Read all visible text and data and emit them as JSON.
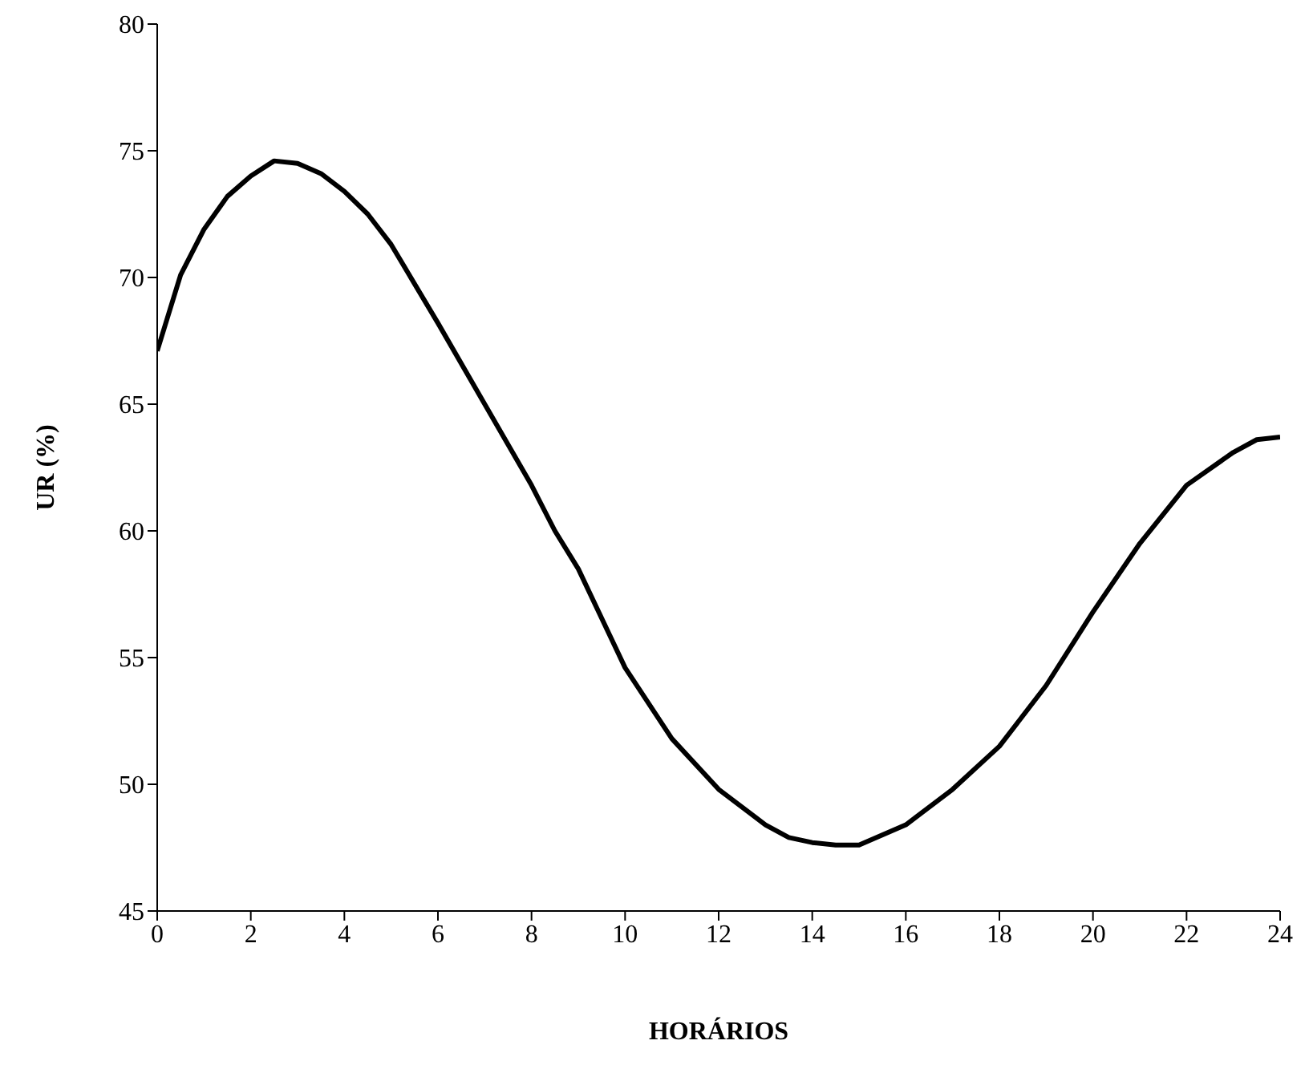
{
  "chart_data": {
    "type": "line",
    "xlabel": "HORÁRIOS",
    "ylabel": "UR (%)",
    "x": [
      0,
      0.5,
      1,
      1.5,
      2,
      2.5,
      3,
      3.5,
      4,
      4.5,
      5,
      6,
      7,
      8,
      8.5,
      9,
      10,
      11,
      12,
      13,
      13.5,
      14,
      14.5,
      15,
      16,
      17,
      18,
      19,
      20,
      21,
      22,
      23,
      23.5,
      24
    ],
    "series": [
      {
        "color": "#000000",
        "values": [
          67.1,
          70.1,
          71.9,
          73.2,
          74.0,
          74.6,
          74.5,
          74.1,
          73.4,
          72.5,
          71.3,
          68.2,
          65.0,
          61.8,
          60.0,
          58.5,
          54.6,
          51.8,
          49.8,
          48.4,
          47.9,
          47.7,
          47.6,
          47.6,
          48.4,
          49.8,
          51.5,
          53.9,
          56.8,
          59.5,
          61.8,
          63.1,
          63.6,
          63.7
        ]
      }
    ],
    "xlim": [
      0,
      24
    ],
    "xticks": [
      0,
      2,
      4,
      6,
      8,
      10,
      12,
      14,
      16,
      18,
      20,
      22,
      24
    ],
    "ylim": [
      45,
      80
    ],
    "yticks": [
      45,
      50,
      55,
      60,
      65,
      70,
      75,
      80
    ],
    "marker": "none",
    "line_style": "solid"
  }
}
